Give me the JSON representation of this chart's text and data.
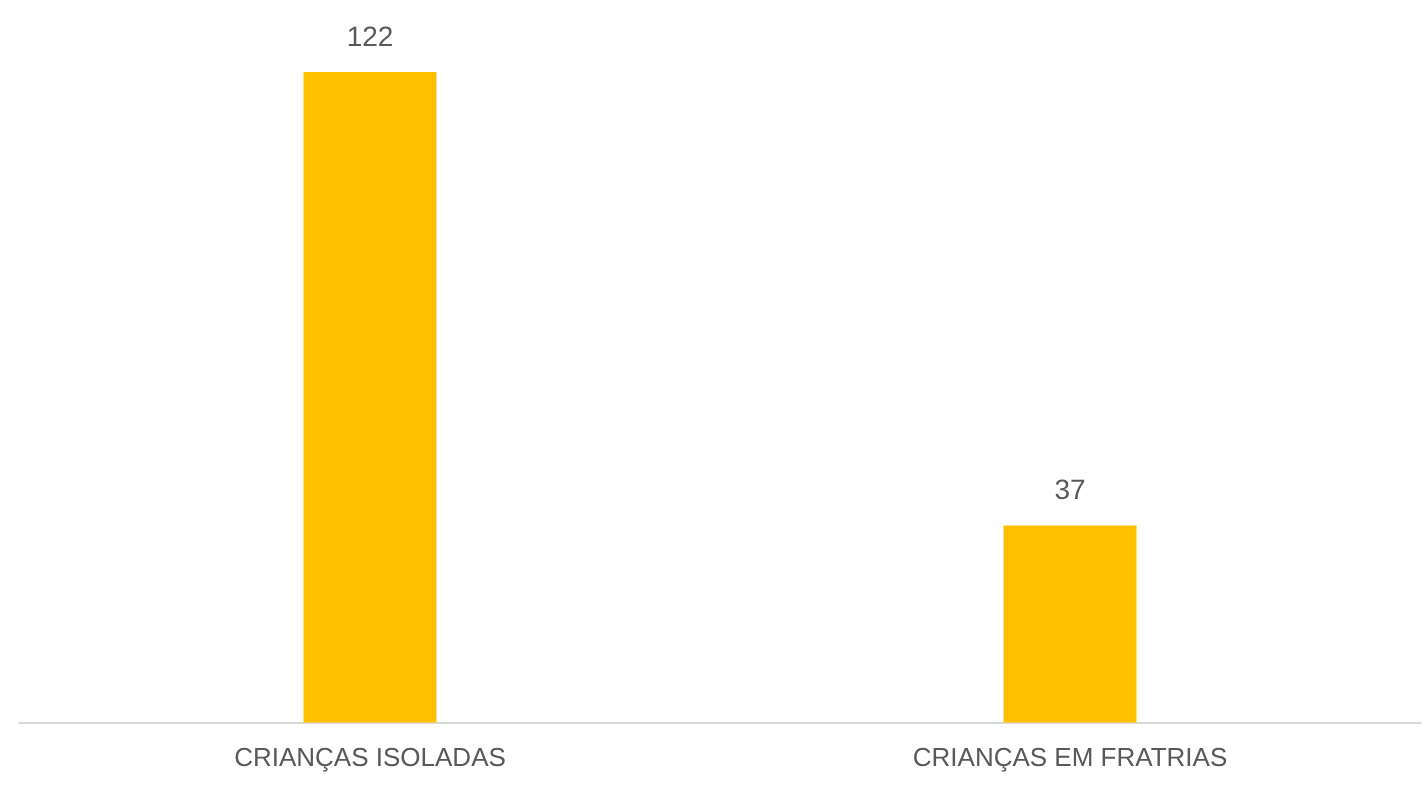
{
  "chart_data": {
    "type": "bar",
    "categories": [
      "CRIANÇAS ISOLADAS",
      "CRIANÇAS EM FRATRIAS"
    ],
    "values": [
      122,
      37
    ],
    "color": "#ffc000",
    "data_labels": true,
    "grid": false,
    "legend": false
  }
}
